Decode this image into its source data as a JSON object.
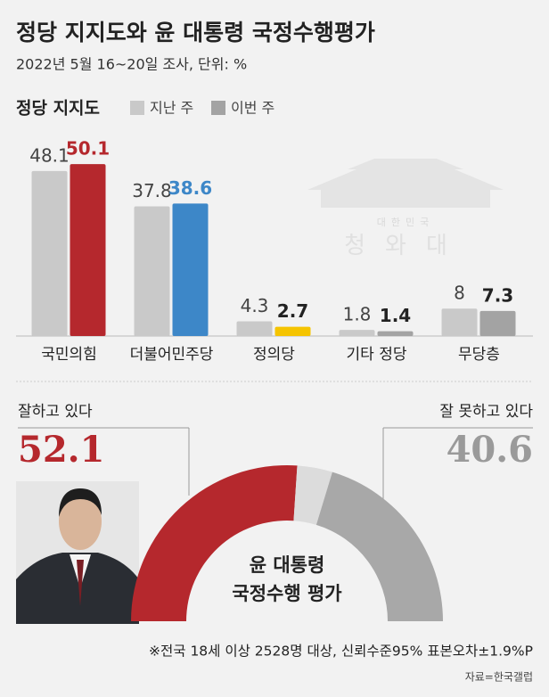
{
  "header": {
    "title": "정당 지지도와 윤 대통령 국정수행평가",
    "subtitle": "2022년 5월 16~20일 조사, 단위: %"
  },
  "watermark": {
    "small": "대한민국",
    "large": "청와대"
  },
  "chart_data": [
    {
      "type": "bar",
      "title": "정당 지지도",
      "categories": [
        "국민의힘",
        "더불어민주당",
        "정의당",
        "기타 정당",
        "무당층"
      ],
      "series": [
        {
          "name": "지난 주",
          "color": "#c9c9c9",
          "values": [
            48.1,
            37.8,
            4.3,
            1.8,
            8
          ],
          "label_colors": [
            "#444444",
            "#444444",
            "#444444",
            "#444444",
            "#444444"
          ]
        },
        {
          "name": "이번 주",
          "color": "#a3a3a3",
          "colors": [
            "#b5282d",
            "#3d87c8",
            "#f5c400",
            "#a3a3a3",
            "#a3a3a3"
          ],
          "values": [
            50.1,
            38.6,
            2.7,
            1.4,
            7.3
          ],
          "label_colors": [
            "#b5282d",
            "#3d87c8",
            "#222222",
            "#222222",
            "#222222"
          ]
        }
      ]
    },
    {
      "type": "pie",
      "title": [
        "윤 대통령",
        "국정수행 평가"
      ],
      "categories": [
        "잘하고 있다",
        null,
        "잘 못하고 있다"
      ],
      "values": [
        52.1,
        7.3,
        40.6
      ],
      "colors": [
        "#b5282d",
        "#dcdcdc",
        "#a8a8a8"
      ],
      "label_colors": [
        "#b5282d",
        null,
        "#9a9a9a"
      ]
    }
  ],
  "footnote": "※전국 18세 이상 2528명 대상, 신뢰수준95% 표본오차±1.9%P",
  "source": "자료=한국갤럽"
}
